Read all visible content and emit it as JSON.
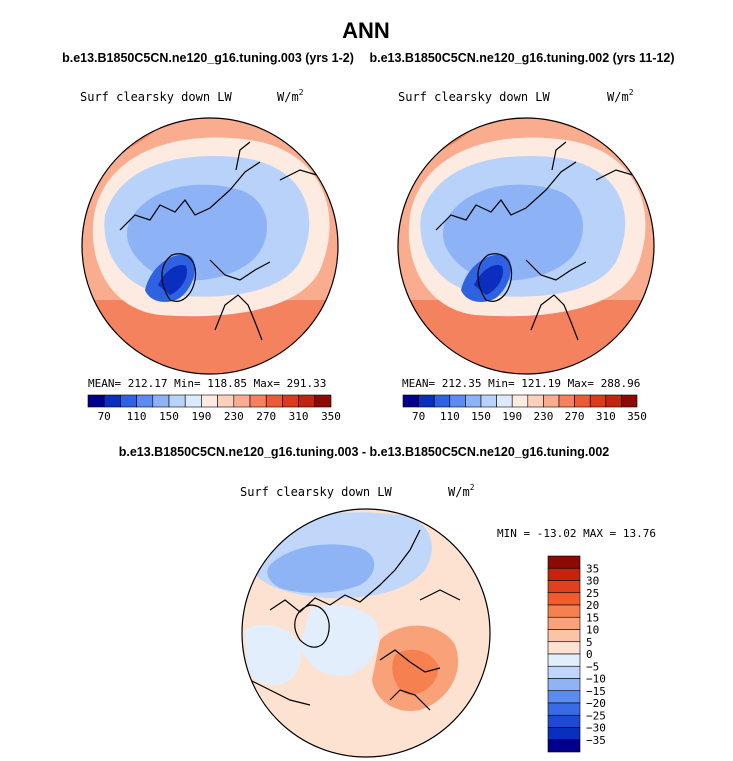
{
  "page": {
    "title": "ANN"
  },
  "chart_data": [
    {
      "type": "heatmap",
      "subtitle": "b.e13.B1850C5CN.ne120_g16.tuning.003 (yrs 1-2)",
      "variable_label": "Surf clearsky down LW",
      "units_base": "W/m",
      "units_exp": "2",
      "stats_text": "MEAN= 212.17   Min= 118.85   Max= 291.33",
      "colorbar": {
        "tick_labels": [
          "70",
          "110",
          "150",
          "190",
          "230",
          "270",
          "310",
          "350"
        ],
        "colors": [
          "#00008b",
          "#0a2fbf",
          "#2f62e0",
          "#5c8cf0",
          "#8db2f6",
          "#b9d2fa",
          "#dde9fc",
          "#fdebe1",
          "#fcd0bb",
          "#f9ac8e",
          "#f5825f",
          "#ed5b36",
          "#dd3a1c",
          "#c4230f",
          "#8b0a05"
        ]
      }
    },
    {
      "type": "heatmap",
      "subtitle": "b.e13.B1850C5CN.ne120_g16.tuning.002 (yrs 11-12)",
      "variable_label": "Surf clearsky down LW",
      "units_base": "W/m",
      "units_exp": "2",
      "stats_text": "MEAN= 212.35   Min= 121.19   Max= 288.96",
      "colorbar": {
        "tick_labels": [
          "70",
          "110",
          "150",
          "190",
          "230",
          "270",
          "310",
          "350"
        ],
        "colors": [
          "#00008b",
          "#0a2fbf",
          "#2f62e0",
          "#5c8cf0",
          "#8db2f6",
          "#b9d2fa",
          "#dde9fc",
          "#fdebe1",
          "#fcd0bb",
          "#f9ac8e",
          "#f5825f",
          "#ed5b36",
          "#dd3a1c",
          "#c4230f",
          "#8b0a05"
        ]
      }
    },
    {
      "type": "heatmap",
      "subtitle": "b.e13.B1850C5CN.ne120_g16.tuning.003 - b.e13.B1850C5CN.ne120_g16.tuning.002",
      "variable_label": "Surf clearsky down LW",
      "units_base": "W/m",
      "units_exp": "2",
      "stats_text": "MIN = -13.02 MAX =  13.76",
      "colorbar": {
        "tick_labels": [
          "35",
          "30",
          "25",
          "20",
          "15",
          "10",
          "5",
          "0",
          "−5",
          "−10",
          "−15",
          "−20",
          "−25",
          "−30",
          "−35"
        ],
        "colors": [
          "#8b0a05",
          "#c4230f",
          "#e0401d",
          "#f05c2e",
          "#f68050",
          "#f9a27a",
          "#fbc4a6",
          "#fde2d2",
          "#e3eefc",
          "#c1d7fa",
          "#8fb4f5",
          "#5c8cf0",
          "#3a6ae6",
          "#1e48d6",
          "#0a2fbf",
          "#00008b"
        ]
      }
    }
  ]
}
